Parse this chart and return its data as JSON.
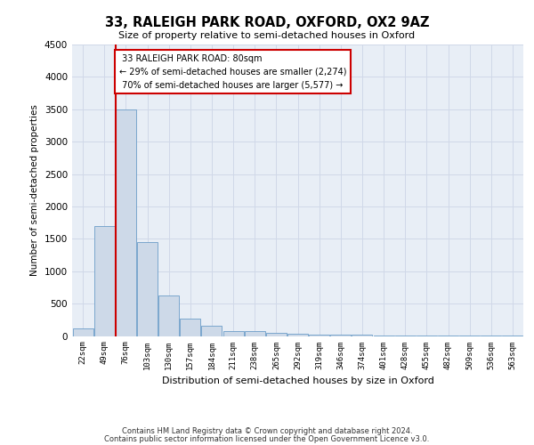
{
  "title_line1": "33, RALEIGH PARK ROAD, OXFORD, OX2 9AZ",
  "title_line2": "Size of property relative to semi-detached houses in Oxford",
  "xlabel": "Distribution of semi-detached houses by size in Oxford",
  "ylabel": "Number of semi-detached properties",
  "categories": [
    "22sqm",
    "49sqm",
    "76sqm",
    "103sqm",
    "130sqm",
    "157sqm",
    "184sqm",
    "211sqm",
    "238sqm",
    "265sqm",
    "292sqm",
    "319sqm",
    "346sqm",
    "374sqm",
    "401sqm",
    "428sqm",
    "455sqm",
    "482sqm",
    "509sqm",
    "536sqm",
    "563sqm"
  ],
  "values": [
    110,
    1700,
    3500,
    1450,
    620,
    270,
    155,
    80,
    70,
    50,
    35,
    25,
    20,
    15,
    10,
    8,
    5,
    4,
    3,
    2,
    2
  ],
  "bar_color": "#cdd9e8",
  "bar_edge_color": "#6b9dc8",
  "property_sqm": 80,
  "property_label": "33 RALEIGH PARK ROAD: 80sqm",
  "pct_smaller": 29,
  "count_smaller": 2274,
  "pct_larger": 70,
  "count_larger": 5577,
  "annotation_box_color": "#ffffff",
  "annotation_box_edge": "#cc0000",
  "line_color": "#cc0000",
  "ylim": [
    0,
    4500
  ],
  "yticks": [
    0,
    500,
    1000,
    1500,
    2000,
    2500,
    3000,
    3500,
    4000,
    4500
  ],
  "grid_color": "#d0d8e8",
  "background_color": "#e8eef6",
  "footer_line1": "Contains HM Land Registry data © Crown copyright and database right 2024.",
  "footer_line2": "Contains public sector information licensed under the Open Government Licence v3.0."
}
